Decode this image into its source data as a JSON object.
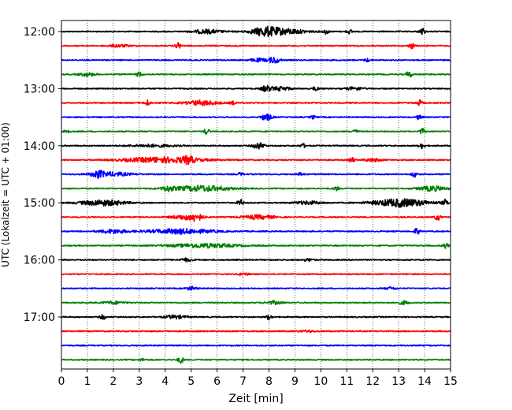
{
  "chart_data": {
    "type": "line",
    "title": "",
    "xlabel": "Zeit  [min]",
    "ylabel": "UTC (Lokalzeit = UTC + 01:00)",
    "xlim": [
      0,
      15
    ],
    "x_ticks": [
      0,
      1,
      2,
      3,
      4,
      5,
      6,
      7,
      8,
      9,
      10,
      11,
      12,
      13,
      14,
      15
    ],
    "x_tick_labels": [
      "0",
      "1",
      "2",
      "3",
      "4",
      "5",
      "6",
      "7",
      "8",
      "9",
      "10",
      "11",
      "12",
      "13",
      "14",
      "15"
    ],
    "y_tick_labels": [
      "12:00",
      "13:00",
      "14:00",
      "15:00",
      "16:00",
      "17:00"
    ],
    "y_tick_rows": [
      0,
      4,
      8,
      12,
      16,
      20
    ],
    "row_interval_minutes": 15,
    "grid": {
      "x": true,
      "y": false,
      "style": "dotted"
    },
    "color_cycle": [
      "#000000",
      "#ff0000",
      "#0000ff",
      "#008000"
    ],
    "rows": [
      {
        "start": "12:00",
        "color": "#000000",
        "events": [
          {
            "t": 5.6,
            "amp": 0.25,
            "dur": 0.5
          },
          {
            "t": 7.8,
            "amp": 0.35,
            "dur": 0.4
          },
          {
            "t": 8.4,
            "amp": 0.4,
            "dur": 0.9
          },
          {
            "t": 10.2,
            "amp": 0.3,
            "dur": 0.1
          },
          {
            "t": 11.1,
            "amp": 0.25,
            "dur": 0.1
          },
          {
            "t": 13.9,
            "amp": 0.45,
            "dur": 0.1
          }
        ]
      },
      {
        "start": "12:15",
        "color": "#ff0000",
        "events": [
          {
            "t": 4.5,
            "amp": 0.4,
            "dur": 0.1
          },
          {
            "t": 2.2,
            "amp": 0.15,
            "dur": 0.4
          },
          {
            "t": 13.5,
            "amp": 0.35,
            "dur": 0.1
          }
        ]
      },
      {
        "start": "12:30",
        "color": "#0000ff",
        "events": [
          {
            "t": 8.2,
            "amp": 0.4,
            "dur": 0.2
          },
          {
            "t": 7.6,
            "amp": 0.2,
            "dur": 0.3
          },
          {
            "t": 11.8,
            "amp": 0.2,
            "dur": 0.1
          }
        ]
      },
      {
        "start": "12:45",
        "color": "#008000",
        "events": [
          {
            "t": 3.0,
            "amp": 0.3,
            "dur": 0.1
          },
          {
            "t": 13.4,
            "amp": 0.4,
            "dur": 0.1
          },
          {
            "t": 1.0,
            "amp": 0.2,
            "dur": 0.3
          }
        ]
      },
      {
        "start": "13:00",
        "color": "#000000",
        "events": [
          {
            "t": 7.9,
            "amp": 0.35,
            "dur": 0.2
          },
          {
            "t": 8.5,
            "amp": 0.25,
            "dur": 0.3
          },
          {
            "t": 9.8,
            "amp": 0.25,
            "dur": 0.1
          },
          {
            "t": 11.3,
            "amp": 0.2,
            "dur": 0.3
          }
        ]
      },
      {
        "start": "13:15",
        "color": "#ff0000",
        "events": [
          {
            "t": 3.3,
            "amp": 0.35,
            "dur": 0.1
          },
          {
            "t": 5.4,
            "amp": 0.3,
            "dur": 0.6
          },
          {
            "t": 6.6,
            "amp": 0.2,
            "dur": 0.1
          },
          {
            "t": 13.8,
            "amp": 0.35,
            "dur": 0.1
          }
        ]
      },
      {
        "start": "13:30",
        "color": "#0000ff",
        "events": [
          {
            "t": 7.9,
            "amp": 0.4,
            "dur": 0.2
          },
          {
            "t": 9.7,
            "amp": 0.2,
            "dur": 0.1
          },
          {
            "t": 13.8,
            "amp": 0.3,
            "dur": 0.1
          }
        ]
      },
      {
        "start": "13:45",
        "color": "#008000",
        "events": [
          {
            "t": 0.2,
            "amp": 0.3,
            "dur": 0.1
          },
          {
            "t": 5.6,
            "amp": 0.35,
            "dur": 0.1
          },
          {
            "t": 11.3,
            "amp": 0.3,
            "dur": 0.1
          },
          {
            "t": 13.9,
            "amp": 0.35,
            "dur": 0.1
          }
        ]
      },
      {
        "start": "14:00",
        "color": "#000000",
        "events": [
          {
            "t": 7.6,
            "amp": 0.4,
            "dur": 0.2
          },
          {
            "t": 9.3,
            "amp": 0.25,
            "dur": 0.1
          },
          {
            "t": 13.9,
            "amp": 0.35,
            "dur": 0.1
          },
          {
            "t": 3.5,
            "amp": 0.15,
            "dur": 0.8
          }
        ]
      },
      {
        "start": "14:15",
        "color": "#ff0000",
        "events": [
          {
            "t": 3.9,
            "amp": 0.35,
            "dur": 1.4
          },
          {
            "t": 4.9,
            "amp": 0.35,
            "dur": 0.2
          },
          {
            "t": 11.2,
            "amp": 0.3,
            "dur": 0.1
          },
          {
            "t": 12.0,
            "amp": 0.2,
            "dur": 0.3
          }
        ]
      },
      {
        "start": "14:30",
        "color": "#0000ff",
        "events": [
          {
            "t": 1.4,
            "amp": 0.35,
            "dur": 0.2
          },
          {
            "t": 1.9,
            "amp": 0.25,
            "dur": 0.7
          },
          {
            "t": 6.9,
            "amp": 0.2,
            "dur": 0.1
          },
          {
            "t": 9.2,
            "amp": 0.2,
            "dur": 0.1
          },
          {
            "t": 13.6,
            "amp": 0.35,
            "dur": 0.1
          }
        ]
      },
      {
        "start": "14:45",
        "color": "#008000",
        "events": [
          {
            "t": 4.1,
            "amp": 0.3,
            "dur": 0.2
          },
          {
            "t": 5.4,
            "amp": 0.35,
            "dur": 1.0
          },
          {
            "t": 10.6,
            "amp": 0.25,
            "dur": 0.1
          },
          {
            "t": 14.3,
            "amp": 0.3,
            "dur": 0.5
          }
        ]
      },
      {
        "start": "15:00",
        "color": "#000000",
        "events": [
          {
            "t": 1.6,
            "amp": 0.35,
            "dur": 0.8
          },
          {
            "t": 6.9,
            "amp": 0.4,
            "dur": 0.1
          },
          {
            "t": 9.5,
            "amp": 0.2,
            "dur": 0.5
          },
          {
            "t": 13.1,
            "amp": 0.5,
            "dur": 1.0
          },
          {
            "t": 14.8,
            "amp": 0.35,
            "dur": 0.1
          }
        ]
      },
      {
        "start": "15:15",
        "color": "#ff0000",
        "events": [
          {
            "t": 5.2,
            "amp": 0.4,
            "dur": 0.2
          },
          {
            "t": 4.8,
            "amp": 0.3,
            "dur": 0.5
          },
          {
            "t": 7.6,
            "amp": 0.25,
            "dur": 0.6
          },
          {
            "t": 14.5,
            "amp": 0.4,
            "dur": 0.1
          }
        ]
      },
      {
        "start": "15:30",
        "color": "#0000ff",
        "events": [
          {
            "t": 2.0,
            "amp": 0.25,
            "dur": 0.5
          },
          {
            "t": 4.6,
            "amp": 0.3,
            "dur": 1.2
          },
          {
            "t": 13.7,
            "amp": 0.4,
            "dur": 0.1
          }
        ]
      },
      {
        "start": "15:45",
        "color": "#008000",
        "events": [
          {
            "t": 5.5,
            "amp": 0.25,
            "dur": 1.2
          },
          {
            "t": 14.8,
            "amp": 0.35,
            "dur": 0.1
          }
        ]
      },
      {
        "start": "16:00",
        "color": "#000000",
        "events": [
          {
            "t": 4.8,
            "amp": 0.2,
            "dur": 0.2
          },
          {
            "t": 9.5,
            "amp": 0.15,
            "dur": 0.2
          }
        ]
      },
      {
        "start": "16:15",
        "color": "#ff0000",
        "events": [
          {
            "t": 7.0,
            "amp": 0.15,
            "dur": 0.2
          }
        ]
      },
      {
        "start": "16:30",
        "color": "#0000ff",
        "events": [
          {
            "t": 5.0,
            "amp": 0.2,
            "dur": 0.2
          },
          {
            "t": 12.7,
            "amp": 0.15,
            "dur": 0.2
          }
        ]
      },
      {
        "start": "16:45",
        "color": "#008000",
        "events": [
          {
            "t": 2.0,
            "amp": 0.15,
            "dur": 0.4
          },
          {
            "t": 8.2,
            "amp": 0.2,
            "dur": 0.3
          },
          {
            "t": 13.2,
            "amp": 0.2,
            "dur": 0.2
          }
        ]
      },
      {
        "start": "17:00",
        "color": "#000000",
        "events": [
          {
            "t": 1.6,
            "amp": 0.3,
            "dur": 0.1
          },
          {
            "t": 4.4,
            "amp": 0.2,
            "dur": 0.4
          },
          {
            "t": 8.0,
            "amp": 0.3,
            "dur": 0.1
          }
        ]
      },
      {
        "start": "17:15",
        "color": "#ff0000",
        "events": [
          {
            "t": 9.5,
            "amp": 0.1,
            "dur": 0.3
          }
        ]
      },
      {
        "start": "17:30",
        "color": "#0000ff",
        "events": []
      },
      {
        "start": "17:45",
        "color": "#008000",
        "events": [
          {
            "t": 4.6,
            "amp": 0.4,
            "dur": 0.1
          },
          {
            "t": 3.1,
            "amp": 0.15,
            "dur": 0.1
          }
        ]
      }
    ]
  }
}
